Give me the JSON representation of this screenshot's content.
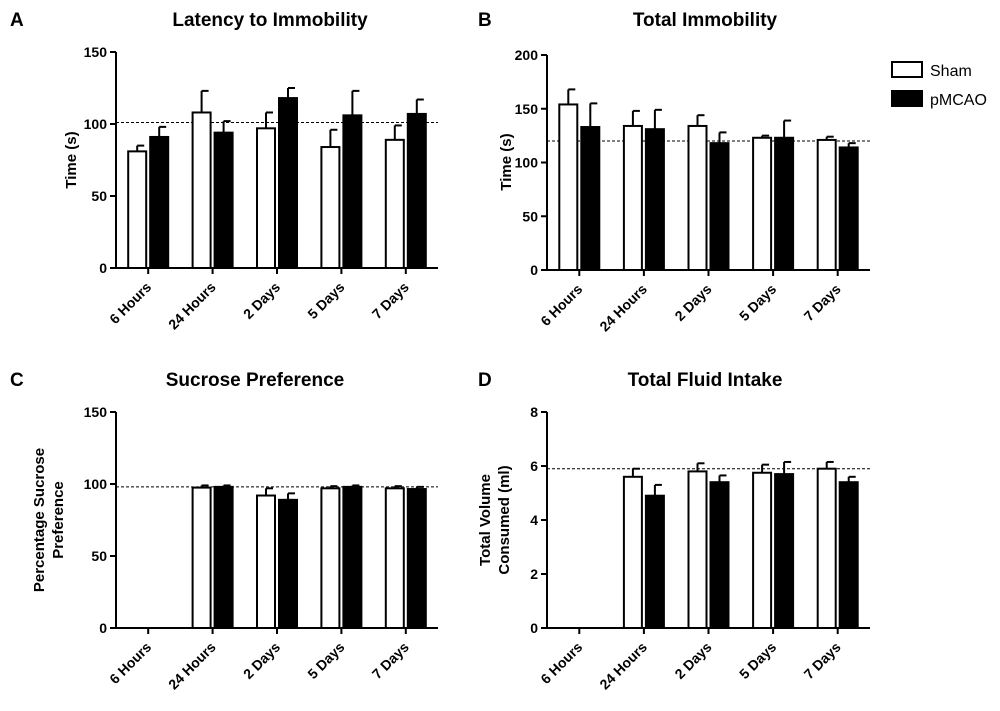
{
  "chart_data": [
    {
      "panel": "A",
      "type": "bar",
      "title": "Latency to Immobility",
      "xlabel": "",
      "ylabel": "Time (s)",
      "ylim": [
        0,
        150
      ],
      "yticks": [
        0,
        50,
        100,
        150
      ],
      "reference_line": 101,
      "categories": [
        "6 Hours",
        "24 Hours",
        "2 Days",
        "5 Days",
        "7 Days"
      ],
      "series": [
        {
          "name": "Sham",
          "values": [
            81,
            108,
            97,
            84,
            89
          ],
          "errors": [
            4,
            15,
            11,
            12,
            10
          ]
        },
        {
          "name": "pMCAO",
          "values": [
            91,
            94,
            118,
            106,
            107
          ],
          "errors": [
            7,
            8,
            7,
            17,
            10
          ]
        }
      ]
    },
    {
      "panel": "B",
      "type": "bar",
      "title": "Total Immobility",
      "xlabel": "",
      "ylabel": "Time (s)",
      "ylim": [
        0,
        200
      ],
      "yticks": [
        0,
        50,
        100,
        150,
        200
      ],
      "reference_line": 120,
      "categories": [
        "6 Hours",
        "24 Hours",
        "2 Days",
        "5 Days",
        "7 Days"
      ],
      "series": [
        {
          "name": "Sham",
          "values": [
            154,
            134,
            134,
            123,
            121
          ],
          "errors": [
            14,
            14,
            10,
            2,
            3
          ]
        },
        {
          "name": "pMCAO",
          "values": [
            133,
            131,
            118,
            123,
            114
          ],
          "errors": [
            22,
            18,
            10,
            16,
            4
          ]
        }
      ]
    },
    {
      "panel": "C",
      "type": "bar",
      "title": "Sucrose Preference",
      "xlabel": "",
      "ylabel": "Percentage Sucrose Preference",
      "ylim": [
        0,
        150
      ],
      "yticks": [
        0,
        50,
        100,
        150
      ],
      "reference_line": 98,
      "categories": [
        "6 Hours",
        "24 Hours",
        "2 Days",
        "5 Days",
        "7 Days"
      ],
      "series": [
        {
          "name": "Sham",
          "values": [
            null,
            97.5,
            92,
            97,
            97
          ],
          "errors": [
            null,
            1.5,
            5,
            1.5,
            1.5
          ]
        },
        {
          "name": "pMCAO",
          "values": [
            null,
            98,
            89,
            98,
            96.5
          ],
          "errors": [
            null,
            1,
            4.5,
            1,
            1.5
          ]
        }
      ]
    },
    {
      "panel": "D",
      "type": "bar",
      "title": "Total Fluid Intake",
      "xlabel": "",
      "ylabel": "Total Volume Consumed (ml)",
      "ylim": [
        0,
        8
      ],
      "yticks": [
        0,
        2,
        4,
        6,
        8
      ],
      "reference_line": 5.9,
      "categories": [
        "6 Hours",
        "24 Hours",
        "2 Days",
        "5 Days",
        "7 Days"
      ],
      "series": [
        {
          "name": "Sham",
          "values": [
            null,
            5.6,
            5.8,
            5.75,
            5.9
          ],
          "errors": [
            null,
            0.3,
            0.3,
            0.3,
            0.25
          ]
        },
        {
          "name": "pMCAO",
          "values": [
            null,
            4.9,
            5.4,
            5.7,
            5.4
          ],
          "errors": [
            null,
            0.4,
            0.25,
            0.45,
            0.2
          ]
        }
      ]
    }
  ],
  "legend": {
    "placement": "top-right",
    "items": [
      {
        "label": "Sham",
        "fill": "#ffffff"
      },
      {
        "label": "pMCAO",
        "fill": "#000000"
      }
    ]
  },
  "colors": {
    "sham": "#ffffff",
    "pmcao": "#000000",
    "stroke": "#000000"
  }
}
